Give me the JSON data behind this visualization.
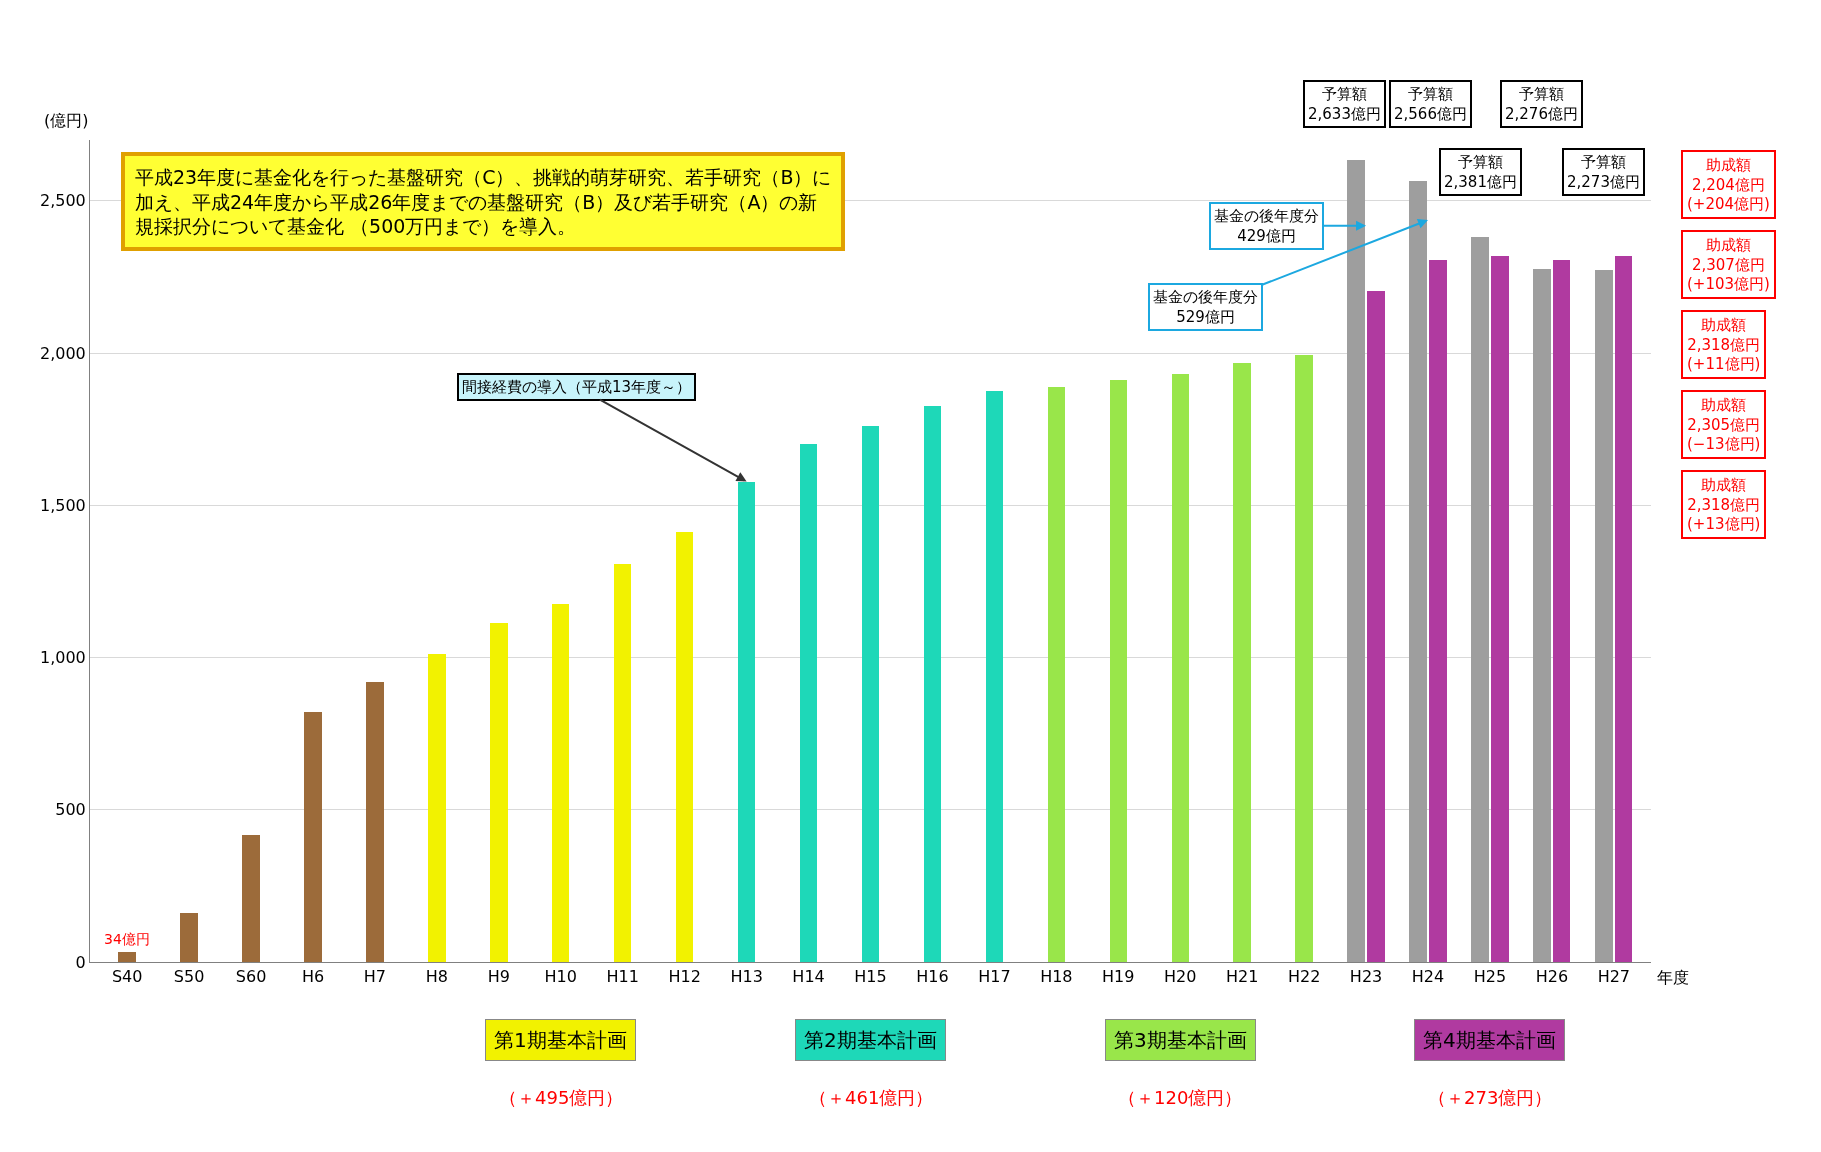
{
  "chart_data": {
    "type": "bar",
    "ylabel": "(億円)",
    "xlabel": "年度",
    "categories": [
      "S40",
      "S50",
      "S60",
      "H6",
      "H7",
      "H8",
      "H9",
      "H10",
      "H11",
      "H12",
      "H13",
      "H14",
      "H15",
      "H16",
      "H17",
      "H18",
      "H19",
      "H20",
      "H21",
      "H22",
      "H23",
      "H24",
      "H25",
      "H26",
      "H27"
    ],
    "series": [
      {
        "values": [
          34,
          161,
          417,
          820,
          919,
          1013,
          1115,
          1175,
          1308,
          1413,
          1578,
          1700,
          1760,
          1827,
          1876,
          1890,
          1911,
          1932,
          1967,
          1995,
          2633,
          2566,
          2381,
          2276,
          2273
        ],
        "colors": [
          "#9c6b3a",
          "#9c6b3a",
          "#9c6b3a",
          "#9c6b3a",
          "#9c6b3a",
          "#f2f200",
          "#f2f200",
          "#f2f200",
          "#f2f200",
          "#f2f200",
          "#1ed8b8",
          "#1ed8b8",
          "#1ed8b8",
          "#1ed8b8",
          "#1ed8b8",
          "#99e64a",
          "#99e64a",
          "#99e64a",
          "#99e64a",
          "#99e64a",
          "#9e9e9e",
          "#9e9e9e",
          "#9e9e9e",
          "#9e9e9e",
          "#9e9e9e"
        ]
      },
      {
        "values": [
          null,
          null,
          null,
          null,
          null,
          null,
          null,
          null,
          null,
          null,
          null,
          null,
          null,
          null,
          null,
          null,
          null,
          null,
          null,
          null,
          2204,
          2307,
          2318,
          2305,
          2318
        ],
        "color": "#b03aa0"
      }
    ],
    "ylim": [
      0,
      2700
    ],
    "yticks": [
      0,
      500,
      {
        "value": 1000,
        "label": "1,000"
      },
      {
        "value": 1500,
        "label": "1,500"
      },
      {
        "value": 2000,
        "label": "2,000"
      },
      {
        "value": 2500,
        "label": "2,500"
      }
    ],
    "grid": "y",
    "annotations": [
      "平成23年度に基金化を行った基盤研究（C）、挑戦的萌芽研究、若手研究（B）に加え、平成24年度から平成26年度までの基盤研究（B）及び若手研究（A）の新規採択分について基金化 （500万円まで）を導入。",
      {
        "text": "34億円",
        "x": "S40",
        "y": 34
      },
      {
        "text": "間接経費の導入（平成13年度～）",
        "x": "H13",
        "y": 1578
      },
      {
        "text": "基金の後年度分\n429億円",
        "x": "H23",
        "y": 2418
      },
      {
        "text": "基金の後年度分\n529億円",
        "x": "H24",
        "y": 2437
      },
      "予算額\n2,633億円",
      "予算額\n2,566億円",
      "予算額\n2,381億円",
      "予算額\n2,276億円",
      "予算額\n2,273億円",
      "助成額\n2,204億円\n(+204億円)",
      "助成額\n2,307億円\n(+103億円)",
      "助成額\n2,318億円\n(+11億円)",
      "助成額\n2,305億円\n(−13億円)",
      "助成額\n2,318億円\n(+13億円)",
      "第1期基本計画",
      "（＋495億円）",
      "第2期基本計画",
      "（＋461億円）",
      "第3期基本計画",
      "（＋120億円）",
      "第4期基本計画",
      "（＋273億円）"
    ]
  }
}
